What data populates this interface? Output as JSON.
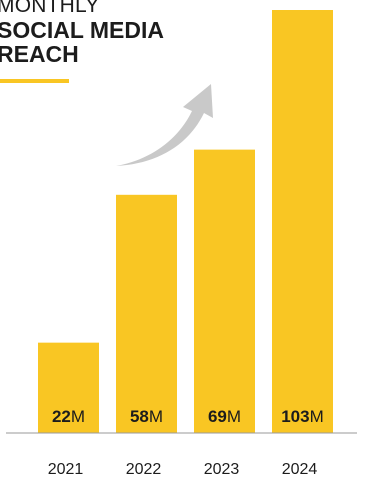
{
  "title": {
    "line1": "MONTHLY",
    "line2": "SOCIAL MEDIA",
    "line3": "REACH"
  },
  "colors": {
    "bar": "#f9c623",
    "arrow": "#c9c9c9",
    "axis": "#9a9a9a",
    "text": "#1c1c1c"
  },
  "chart_data": {
    "type": "bar",
    "title": "MONTHLY SOCIAL MEDIA REACH",
    "categories": [
      "2021",
      "2022",
      "2023",
      "2024"
    ],
    "values": [
      22,
      58,
      69,
      103
    ],
    "value_labels": [
      {
        "num": "22",
        "unit": "M"
      },
      {
        "num": "58",
        "unit": "M"
      },
      {
        "num": "69",
        "unit": "M"
      },
      {
        "num": "103",
        "unit": "M"
      }
    ],
    "unit": "M",
    "ylim": [
      0,
      103
    ],
    "grid": false,
    "legend": "none",
    "annotation": "curved-growth-arrow"
  }
}
